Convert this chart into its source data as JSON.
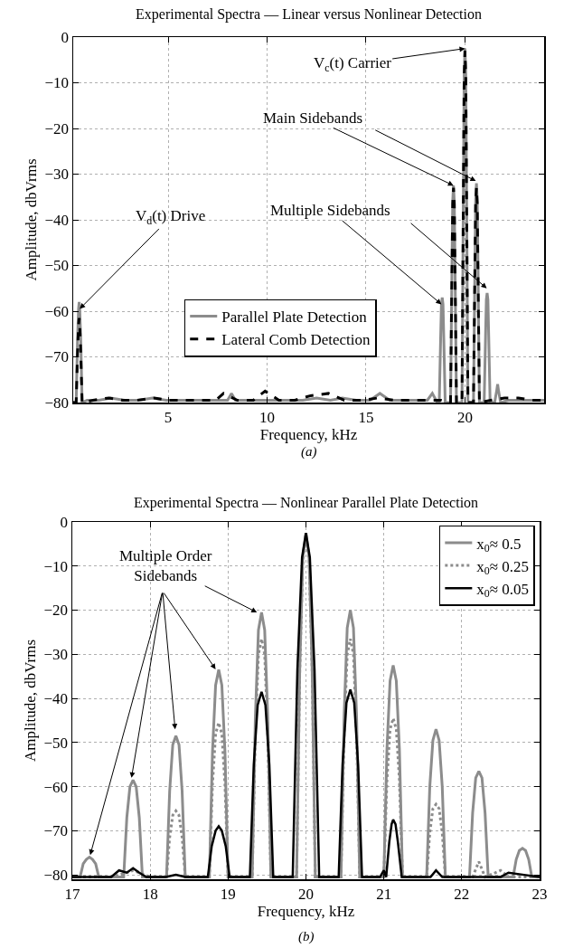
{
  "chart_data": [
    {
      "type": "line",
      "title": "Experimental Spectra — Linear versus Nonlinear Detection",
      "xlabel": "Frequency, kHz",
      "ylabel": "Amplitude, dbVrms",
      "xlim": [
        0.2,
        24
      ],
      "ylim": [
        -80,
        0
      ],
      "xticks": [
        5,
        10,
        15,
        20
      ],
      "yticks": [
        0,
        -10,
        -20,
        -30,
        -40,
        -50,
        -60,
        -70,
        -80
      ],
      "grid": true,
      "legend": "bottom",
      "annotations": [
        {
          "text": "V$_{c}$(t) Carrier",
          "x": 20.0,
          "y": -2.5
        },
        {
          "text": "Main Sidebands",
          "x": 19.42,
          "y": -32.5
        },
        {
          "text": "V$_{d}$(t) Drive",
          "x": 0.53,
          "y": -59.5
        },
        {
          "text": "Multiple Sidebands",
          "x": 18.81,
          "y": -58.5
        },
        "(a)"
      ],
      "series": [
        {
          "name": "Parallel Plate Detection",
          "color": "#8c8c8c",
          "line_style": "solid",
          "x": [
            0.2,
            0.35,
            0.42,
            0.47,
            0.5,
            0.53,
            0.58,
            0.65,
            0.9,
            1.5,
            2.1,
            2.8,
            3.5,
            4.2,
            4.9,
            5.6,
            6.3,
            7.0,
            7.6,
            8.0,
            8.2,
            8.4,
            9.0,
            9.7,
            10.4,
            11.1,
            11.8,
            12.5,
            13.2,
            13.8,
            14.5,
            15.2,
            15.7,
            16.2,
            16.9,
            17.6,
            18.1,
            18.35,
            18.6,
            18.7,
            18.77,
            18.81,
            18.85,
            18.89,
            18.93,
            19.0,
            19.27,
            19.34,
            19.38,
            19.42,
            19.46,
            19.5,
            19.57,
            19.85,
            19.92,
            19.96,
            20.0,
            20.04,
            20.08,
            20.15,
            20.43,
            20.5,
            20.54,
            20.58,
            20.62,
            20.66,
            20.73,
            20.97,
            21.04,
            21.08,
            21.12,
            21.16,
            21.2,
            21.27,
            21.5,
            21.6,
            21.65,
            21.7,
            21.8,
            22.2,
            22.9,
            23.6,
            24.0
          ],
          "values": [
            -80,
            -80,
            -66,
            -59.5,
            -58,
            -59.5,
            -66,
            -80,
            -79.5,
            -79.5,
            -79,
            -79.5,
            -79.5,
            -79,
            -79.5,
            -79.5,
            -79.5,
            -79.5,
            -79.5,
            -79.5,
            -78,
            -79.5,
            -79.5,
            -79.5,
            -79.5,
            -79.5,
            -79.5,
            -79,
            -79.5,
            -79,
            -79.5,
            -79.5,
            -78,
            -79.5,
            -79.5,
            -79.5,
            -79.5,
            -78,
            -80,
            -80,
            -66,
            -58.5,
            -57,
            -58.5,
            -66,
            -80,
            -80,
            -51.5,
            -36,
            -32.5,
            -36,
            -51.5,
            -80,
            -80,
            -33.5,
            -8,
            -2.5,
            -8,
            -33.5,
            -80,
            -80,
            -51,
            -35.5,
            -32,
            -35.5,
            -51,
            -80,
            -80,
            -65.5,
            -57.5,
            -56,
            -57.5,
            -65.5,
            -80,
            -80,
            -77.5,
            -76,
            -77.5,
            -80,
            -79.5,
            -79.5,
            -79.5,
            -79.5
          ]
        },
        {
          "name": "Lateral Comb Detection",
          "color": "#000000",
          "line_style": "dashed",
          "x": [
            0.2,
            0.35,
            0.42,
            0.47,
            0.5,
            0.53,
            0.58,
            0.65,
            1.2,
            2.0,
            2.7,
            3.4,
            4.3,
            5.0,
            5.8,
            6.6,
            7.4,
            7.8,
            8.5,
            9.3,
            9.9,
            10.6,
            11.4,
            12.2,
            13.1,
            13.9,
            14.8,
            15.6,
            16.4,
            17.2,
            18.0,
            18.8,
            19.27,
            19.34,
            19.38,
            19.42,
            19.46,
            19.5,
            19.57,
            19.85,
            19.92,
            19.96,
            20.0,
            20.04,
            20.08,
            20.15,
            20.43,
            20.5,
            20.54,
            20.58,
            20.62,
            20.66,
            20.73,
            21.3,
            22.0,
            22.7,
            23.4,
            24.0
          ],
          "values": [
            -80,
            -80,
            -69,
            -63,
            -61.5,
            -63,
            -69,
            -80,
            -79.5,
            -79,
            -79.5,
            -79.5,
            -79,
            -79.5,
            -79.5,
            -79.5,
            -79.5,
            -78,
            -79.5,
            -79.5,
            -77.5,
            -79.5,
            -79.5,
            -78.5,
            -78,
            -79.5,
            -79.5,
            -79,
            -79.5,
            -79.5,
            -79.5,
            -79.5,
            -80,
            -52,
            -36.5,
            -33,
            -36.5,
            -52,
            -80,
            -80,
            -34,
            -8.5,
            -3,
            -8.5,
            -34,
            -80,
            -80,
            -52,
            -36.5,
            -33,
            -36.5,
            -52,
            -80,
            -79.5,
            -79,
            -79,
            -79.5,
            -79.5
          ]
        }
      ]
    },
    {
      "type": "line",
      "title": "Experimental Spectra — Nonlinear Parallel Plate Detection",
      "xlabel": "Frequency, kHz",
      "ylabel": "Amplitude, dbVrms",
      "xlim": [
        17,
        23
      ],
      "ylim": [
        -81,
        0
      ],
      "xticks": [
        17,
        18,
        19,
        20,
        21,
        22,
        23
      ],
      "yticks": [
        0,
        -10,
        -20,
        -30,
        -40,
        -50,
        -60,
        -70,
        -80
      ],
      "grid": true,
      "legend": "top right",
      "annotations": [
        {
          "text": "Multiple Order\nSidebands",
          "x": 19.37,
          "y": -20.5
        },
        "(b)"
      ],
      "series": [
        {
          "name": "x$_{0}$≈ 0.5",
          "color": "#8c8c8c",
          "line_style": "solid",
          "x": [
            17.0,
            17.1,
            17.14,
            17.18,
            17.22,
            17.26,
            17.3,
            17.34,
            17.5,
            17.66,
            17.7,
            17.74,
            17.78,
            17.82,
            17.86,
            17.9,
            18.05,
            18.21,
            18.25,
            18.29,
            18.33,
            18.37,
            18.41,
            18.45,
            18.6,
            18.76,
            18.8,
            18.84,
            18.88,
            18.92,
            18.96,
            19.0,
            19.16,
            19.31,
            19.35,
            19.39,
            19.43,
            19.47,
            19.51,
            19.55,
            19.7,
            19.88,
            19.92,
            19.96,
            20.0,
            20.04,
            20.08,
            20.12,
            20.3,
            20.45,
            20.49,
            20.53,
            20.57,
            20.61,
            20.65,
            20.69,
            20.85,
            21.0,
            21.04,
            21.08,
            21.12,
            21.16,
            21.2,
            21.24,
            21.4,
            21.55,
            21.59,
            21.63,
            21.67,
            21.71,
            21.75,
            21.79,
            21.95,
            22.1,
            22.14,
            22.18,
            22.22,
            22.26,
            22.3,
            22.34,
            22.5,
            22.66,
            22.7,
            22.74,
            22.78,
            22.82,
            22.86,
            22.9,
            23.0
          ],
          "values": [
            -80.5,
            -80.5,
            -77.5,
            -76.5,
            -76,
            -76.5,
            -77.5,
            -80.5,
            -80.5,
            -80.5,
            -67,
            -60,
            -58.5,
            -60,
            -67,
            -80.5,
            -80.5,
            -80.5,
            -61,
            -50.5,
            -48.5,
            -50.5,
            -61,
            -80.5,
            -80.5,
            -80.5,
            -52,
            -37,
            -33.5,
            -37,
            -52,
            -80.5,
            -80.5,
            -80.5,
            -44.5,
            -24.5,
            -20.5,
            -24.5,
            -44.5,
            -80.5,
            -80.5,
            -80.5,
            -33.5,
            -8,
            -2.5,
            -8,
            -33.5,
            -80.5,
            -80.5,
            -80.5,
            -44,
            -24,
            -20,
            -24,
            -44,
            -80.5,
            -80.5,
            -80.5,
            -51.5,
            -36,
            -32.5,
            -36,
            -51.5,
            -80.5,
            -80.5,
            -80.5,
            -60,
            -49.5,
            -47,
            -49.5,
            -60,
            -80.5,
            -80.5,
            -80.5,
            -66,
            -58,
            -56.5,
            -58,
            -66,
            -80.5,
            -80.5,
            -80.5,
            -76.5,
            -74.5,
            -74,
            -74.5,
            -76.5,
            -80.5,
            -80.5
          ]
        },
        {
          "name": "x$_{0}$≈ 0.25",
          "color": "#8c8c8c",
          "line_style": "dotted",
          "x": [
            17.0,
            17.5,
            17.7,
            17.78,
            17.86,
            18.0,
            18.21,
            18.25,
            18.29,
            18.33,
            18.37,
            18.41,
            18.45,
            18.76,
            18.8,
            18.84,
            18.88,
            18.92,
            18.96,
            19.0,
            19.31,
            19.35,
            19.39,
            19.43,
            19.47,
            19.51,
            19.55,
            19.88,
            19.92,
            19.96,
            20.0,
            20.04,
            20.08,
            20.12,
            20.45,
            20.49,
            20.53,
            20.57,
            20.61,
            20.65,
            20.69,
            21.0,
            21.04,
            21.08,
            21.12,
            21.16,
            21.2,
            21.24,
            21.55,
            21.59,
            21.63,
            21.67,
            21.71,
            21.75,
            21.79,
            22.14,
            22.22,
            22.3,
            22.5,
            22.6,
            23.0
          ],
          "values": [
            -80.5,
            -80.5,
            -79.5,
            -79,
            -79.5,
            -80.5,
            -80.5,
            -71.5,
            -66.5,
            -65.5,
            -66.5,
            -71.5,
            -80.5,
            -80.5,
            -59.5,
            -48,
            -45.5,
            -48,
            -59.5,
            -80.5,
            -80.5,
            -48,
            -30,
            -26.5,
            -30,
            -48,
            -80.5,
            -80.5,
            -34,
            -8.5,
            -3,
            -8.5,
            -34,
            -80.5,
            -80.5,
            -48,
            -30,
            -26.5,
            -30,
            -48,
            -80.5,
            -80.5,
            -58.5,
            -47,
            -44.5,
            -47,
            -58.5,
            -80.5,
            -80.5,
            -70.5,
            -65,
            -64,
            -65,
            -70.5,
            -80.5,
            -80.5,
            -77,
            -80.5,
            -79,
            -80.5,
            -80.5
          ]
        },
        {
          "name": "x$_{0}$≈ 0.05",
          "color": "#000000",
          "line_style": "solid",
          "x": [
            17.0,
            17.5,
            17.6,
            17.7,
            17.78,
            17.86,
            17.95,
            18.2,
            18.33,
            18.45,
            18.74,
            18.79,
            18.84,
            18.88,
            18.92,
            18.97,
            19.02,
            19.28,
            19.33,
            19.38,
            19.43,
            19.48,
            19.53,
            19.58,
            19.83,
            19.89,
            19.95,
            20.0,
            20.05,
            20.11,
            20.17,
            20.42,
            20.47,
            20.52,
            20.57,
            20.62,
            20.67,
            20.72,
            20.95,
            21.0,
            21.03,
            21.07,
            21.1,
            21.12,
            21.15,
            21.18,
            21.23,
            21.6,
            21.67,
            21.75,
            22.5,
            22.6,
            22.8,
            23.0
          ],
          "values": [
            -80.5,
            -80.5,
            -79,
            -79.5,
            -78.5,
            -79.5,
            -80.5,
            -80.5,
            -80,
            -80.5,
            -80.5,
            -73.5,
            -70,
            -69,
            -70,
            -73.5,
            -80.5,
            -80.5,
            -55,
            -41.5,
            -38.5,
            -41.5,
            -55,
            -80.5,
            -80.5,
            -33.5,
            -8,
            -2.5,
            -8,
            -33.5,
            -80.5,
            -80.5,
            -55,
            -41,
            -38,
            -41,
            -55,
            -80.5,
            -80.5,
            -79,
            -80.5,
            -72.5,
            -68.5,
            -67.5,
            -68.5,
            -72.5,
            -80.5,
            -80.5,
            -79,
            -80.5,
            -80.5,
            -79.5,
            -80,
            -80.5
          ]
        }
      ]
    }
  ]
}
